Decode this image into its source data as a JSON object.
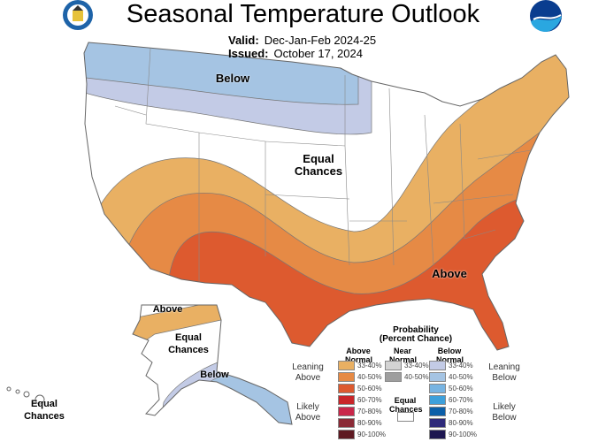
{
  "header": {
    "title": "Seasonal Temperature Outlook",
    "valid_label": "Valid:",
    "valid_value": "Dec-Jan-Feb 2024-25",
    "issued_label": "Issued:",
    "issued_value": "October 17, 2024",
    "left_logo": "doc-seal-icon",
    "right_logo": "noaa-logo-icon"
  },
  "map": {
    "labels": {
      "below": "Below",
      "equal": "Equal Chances",
      "above": "Above",
      "ak_above": "Above",
      "ak_equal": "Equal Chances",
      "ak_below": "Below",
      "hi_equal": "Equal Chances"
    },
    "colors": {
      "equal": "#ffffff",
      "below_33_40": "#c3cbe6",
      "below_40_50": "#a5c4e3",
      "above_33_40": "#e9b063",
      "above_40_50": "#e68a45",
      "above_50_60": "#dd5a2f"
    }
  },
  "legend": {
    "title": "Probability",
    "subtitle": "(Percent Chance)",
    "col_above": "Above Normal",
    "col_near": "Near Normal",
    "col_below": "Below Normal",
    "leaning_above": "Leaning Above",
    "likely_above": "Likely Above",
    "leaning_below": "Leaning Below",
    "likely_below": "Likely Below",
    "equal": "Equal Chances",
    "above": [
      {
        "range": "33-40%",
        "color": "#e9b063"
      },
      {
        "range": "40-50%",
        "color": "#e68a45"
      },
      {
        "range": "50-60%",
        "color": "#dd5a2f"
      },
      {
        "range": "60-70%",
        "color": "#c9262a"
      },
      {
        "range": "70-80%",
        "color": "#c9274a"
      },
      {
        "range": "80-90%",
        "color": "#8a2a36"
      },
      {
        "range": "90-100%",
        "color": "#5e1a22"
      }
    ],
    "near": [
      {
        "range": "33-40%",
        "color": "#d3d3d3"
      },
      {
        "range": "40-50%",
        "color": "#9e9e9e"
      }
    ],
    "below": [
      {
        "range": "33-40%",
        "color": "#c3cbe6"
      },
      {
        "range": "40-50%",
        "color": "#a5c4e3"
      },
      {
        "range": "50-60%",
        "color": "#78b4e2"
      },
      {
        "range": "60-70%",
        "color": "#3ea0db"
      },
      {
        "range": "70-80%",
        "color": "#0c5fa8"
      },
      {
        "range": "80-90%",
        "color": "#2e2a7a"
      },
      {
        "range": "90-100%",
        "color": "#1d1650"
      }
    ]
  }
}
